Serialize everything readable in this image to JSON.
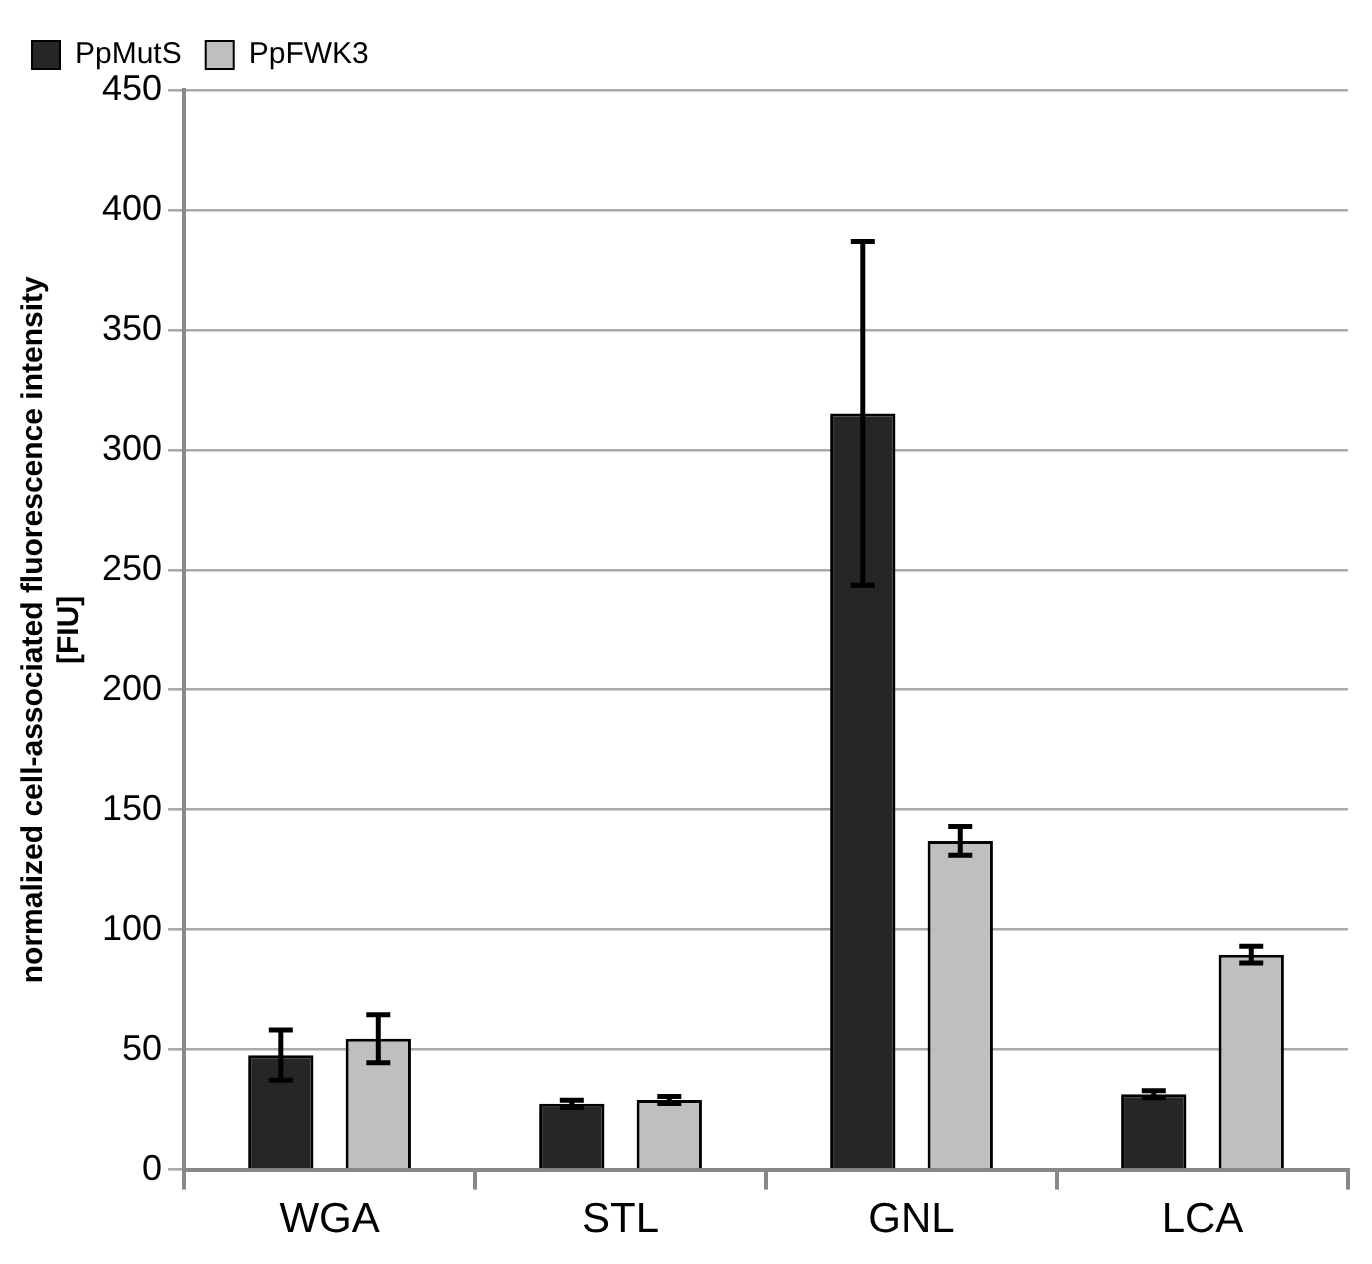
{
  "chart_data": {
    "type": "bar",
    "ylabel": "normalized cell-associated fluorescence intensity\n[FIU]",
    "categories": [
      "WGA",
      "STL",
      "GNL",
      "LCA"
    ],
    "series": [
      {
        "name": "PpMutS",
        "color": "#262626",
        "values": [
          47.7,
          27.4,
          315.2,
          31.4
        ],
        "errors": [
          10.5,
          1.5,
          71.6,
          1.5
        ]
      },
      {
        "name": "PpFWK3",
        "color": "#bfbfbf",
        "values": [
          54.5,
          29,
          137,
          89.6
        ],
        "errors": [
          10,
          1.5,
          6,
          3.5
        ]
      }
    ],
    "ylim": [
      0,
      450
    ],
    "yticks": [
      0,
      50,
      100,
      150,
      200,
      250,
      300,
      350,
      400,
      450
    ],
    "grid": "y",
    "legend": "top left"
  }
}
